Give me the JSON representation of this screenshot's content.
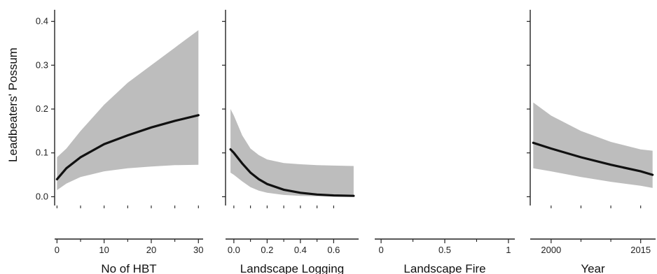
{
  "colors": {
    "band": "#bdbdbd",
    "line": "#111111",
    "axis": "#222222"
  },
  "ylabel": "Leadbeaters' Possum",
  "yticks": [
    "0.0",
    "0.1",
    "0.2",
    "0.3",
    "0.4"
  ],
  "chart_data": [
    {
      "type": "line",
      "xlabel": "No of HBT",
      "xlim": [
        -0.5,
        31
      ],
      "ylim": [
        -0.02,
        0.42
      ],
      "xticks": [
        0,
        10,
        20,
        30
      ],
      "xticklabels": [
        "0",
        "10",
        "20",
        "30"
      ],
      "minor_xticks": [
        5,
        15,
        25
      ],
      "series": [
        {
          "x": [
            0,
            2,
            5,
            10,
            15,
            20,
            25,
            30
          ],
          "y": [
            0.04,
            0.065,
            0.09,
            0.12,
            0.14,
            0.158,
            0.173,
            0.186
          ],
          "lower": [
            0.015,
            0.03,
            0.045,
            0.058,
            0.065,
            0.069,
            0.072,
            0.073
          ],
          "upper": [
            0.09,
            0.11,
            0.15,
            0.21,
            0.26,
            0.3,
            0.34,
            0.38
          ]
        }
      ]
    },
    {
      "type": "line",
      "xlabel": "Landscape Logging",
      "xlim": [
        -0.05,
        0.75
      ],
      "ylim": [
        -0.02,
        0.42
      ],
      "xticks": [
        0.0,
        0.2,
        0.4,
        0.6
      ],
      "xticklabels": [
        "0.0",
        "0.2",
        "0.4",
        "0.6"
      ],
      "minor_xticks": [
        0.1,
        0.3,
        0.5
      ],
      "series": [
        {
          "x": [
            -0.02,
            0.0,
            0.05,
            0.1,
            0.15,
            0.2,
            0.3,
            0.4,
            0.5,
            0.6,
            0.72
          ],
          "y": [
            0.108,
            0.1,
            0.076,
            0.055,
            0.04,
            0.029,
            0.016,
            0.009,
            0.005,
            0.003,
            0.002
          ],
          "lower": [
            0.055,
            0.05,
            0.035,
            0.022,
            0.014,
            0.009,
            0.004,
            0.002,
            0.001,
            0.0005,
            0.0003
          ],
          "upper": [
            0.2,
            0.185,
            0.14,
            0.11,
            0.095,
            0.085,
            0.077,
            0.074,
            0.072,
            0.071,
            0.07
          ]
        }
      ]
    },
    {
      "type": "line",
      "xlabel": "Landscape Fire",
      "xlim": [
        -0.05,
        1.05
      ],
      "ylim": [
        -0.02,
        0.42
      ],
      "xticks": [
        0,
        0.5,
        1
      ],
      "xticklabels": [
        "0",
        "0.5",
        "1"
      ],
      "minor_xticks": [
        0.25,
        0.75
      ],
      "series": []
    },
    {
      "type": "line",
      "xlabel": "Year",
      "xlim": [
        1996.5,
        2017.5
      ],
      "ylim": [
        -0.02,
        0.42
      ],
      "xticks": [
        2000,
        2015
      ],
      "xticklabels": [
        "2000",
        "2015"
      ],
      "minor_xticks": [
        2005,
        2010
      ],
      "series": [
        {
          "x": [
            1997,
            2000,
            2005,
            2010,
            2015,
            2017
          ],
          "y": [
            0.123,
            0.11,
            0.09,
            0.073,
            0.058,
            0.05
          ],
          "lower": [
            0.065,
            0.058,
            0.045,
            0.034,
            0.025,
            0.02
          ],
          "upper": [
            0.215,
            0.185,
            0.15,
            0.125,
            0.108,
            0.105
          ]
        }
      ]
    }
  ]
}
